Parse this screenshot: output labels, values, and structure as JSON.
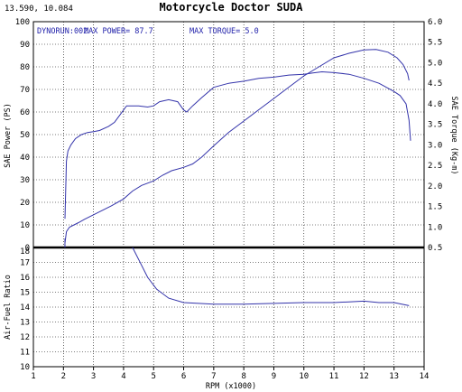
{
  "header": {
    "coords": "13.590, 10.084",
    "title": "Motorcycle Doctor SUDA"
  },
  "chart_data": [
    {
      "type": "line",
      "title": "",
      "xlabel": "RPM (x1000)",
      "ylabel": "SAE Power (PS)",
      "y2label": "SAE Torque (Kg-m)",
      "xlim": [
        1,
        14
      ],
      "ylim": [
        0,
        100
      ],
      "y2lim": [
        0.5,
        6.0
      ],
      "x_ticks": [
        1,
        2,
        3,
        4,
        5,
        6,
        7,
        8,
        9,
        10,
        11,
        12,
        13,
        14
      ],
      "y_ticks": [
        0,
        10,
        20,
        30,
        40,
        50,
        60,
        70,
        80,
        90,
        100
      ],
      "y2_ticks": [
        0.5,
        1.0,
        1.5,
        2.0,
        2.5,
        3.0,
        3.5,
        4.0,
        4.5,
        5.0,
        5.5,
        6.0
      ],
      "y2_tick_labels": [
        "0.5",
        "1.0",
        "1.5",
        "2.0",
        "2.5",
        "3.0",
        "3.5",
        "4.0",
        "4.5",
        "5.0",
        "5.5",
        "6.0"
      ],
      "grid": true,
      "annotations": {
        "run": "DYNORUN:002",
        "max_power": "MAX POWER= 87.7",
        "max_torque": "MAX TORQUE= 5.0"
      },
      "series": [
        {
          "axis": "left",
          "color": "#3333aa",
          "x": [
            2.05,
            2.1,
            2.2,
            2.35,
            2.5,
            2.7,
            3.0,
            3.3,
            3.6,
            4.0,
            4.3,
            4.6,
            5.0,
            5.3,
            5.6,
            6.0,
            6.3,
            6.6,
            7.0,
            7.5,
            8.0,
            8.5,
            9.0,
            9.5,
            10.0,
            10.5,
            11.0,
            11.5,
            12.0,
            12.4,
            12.8,
            13.1,
            13.3,
            13.45,
            13.5
          ],
          "y": [
            2,
            7,
            9,
            10,
            11,
            12.5,
            14.5,
            16.5,
            18.5,
            21.5,
            25,
            27.5,
            29.5,
            32,
            34,
            35.5,
            37,
            40,
            45,
            51,
            56,
            61,
            66,
            71,
            76,
            80,
            84,
            86,
            87.5,
            87.7,
            86.5,
            84,
            81,
            77,
            74
          ]
        },
        {
          "axis": "right",
          "color": "#3333aa",
          "x": [
            2.05,
            2.1,
            2.15,
            2.25,
            2.4,
            2.6,
            2.8,
            3.0,
            3.2,
            3.5,
            3.7,
            3.9,
            4.1,
            4.3,
            4.5,
            4.8,
            5.0,
            5.2,
            5.5,
            5.8,
            6.0,
            6.1,
            6.3,
            6.6,
            7.0,
            7.5,
            8.0,
            8.5,
            9.0,
            9.5,
            10.0,
            10.3,
            10.6,
            11.0,
            11.5,
            12.0,
            12.5,
            13.0,
            13.2,
            13.4,
            13.5,
            13.55
          ],
          "y": [
            1.2,
            2.6,
            2.85,
            3.0,
            3.15,
            3.25,
            3.3,
            3.32,
            3.35,
            3.45,
            3.55,
            3.75,
            3.95,
            3.95,
            3.95,
            3.92,
            3.95,
            4.05,
            4.1,
            4.05,
            3.85,
            3.8,
            3.95,
            4.15,
            4.4,
            4.5,
            4.55,
            4.62,
            4.65,
            4.7,
            4.72,
            4.75,
            4.78,
            4.76,
            4.72,
            4.62,
            4.5,
            4.3,
            4.2,
            4.0,
            3.6,
            3.1
          ]
        }
      ]
    },
    {
      "type": "line",
      "title": "",
      "xlabel": "RPM (x1000)",
      "ylabel": "Air-Fuel Ratio",
      "xlim": [
        1,
        14
      ],
      "ylim": [
        10,
        18
      ],
      "x_ticks": [
        1,
        2,
        3,
        4,
        5,
        6,
        7,
        8,
        9,
        10,
        11,
        12,
        13,
        14
      ],
      "y_ticks": [
        10,
        11,
        12,
        13,
        14,
        15,
        16,
        17,
        18
      ],
      "grid": true,
      "series": [
        {
          "color": "#3333aa",
          "x": [
            4.3,
            4.5,
            4.8,
            5.1,
            5.5,
            6.0,
            6.5,
            7.0,
            7.5,
            8.0,
            9.0,
            10.0,
            11.0,
            11.5,
            12.0,
            12.5,
            13.0,
            13.5
          ],
          "y": [
            18,
            17.2,
            16.0,
            15.2,
            14.6,
            14.3,
            14.25,
            14.2,
            14.2,
            14.2,
            14.25,
            14.3,
            14.3,
            14.35,
            14.4,
            14.3,
            14.3,
            14.1
          ]
        }
      ]
    }
  ]
}
